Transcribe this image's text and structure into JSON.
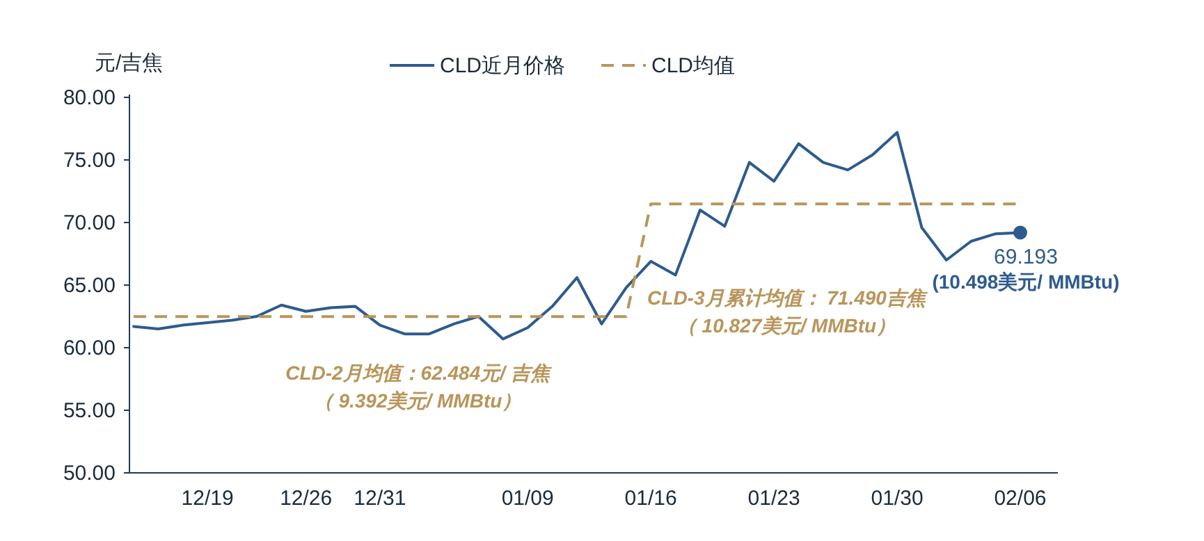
{
  "chart_data": {
    "type": "line",
    "ylabel": "元/吉焦",
    "categories": [
      null,
      null,
      null,
      "12/19",
      null,
      null,
      null,
      "12/26",
      null,
      null,
      "12/31",
      null,
      null,
      null,
      null,
      null,
      "01/09",
      null,
      null,
      null,
      null,
      "01/16",
      null,
      null,
      null,
      null,
      "01/23",
      null,
      null,
      null,
      null,
      "01/30",
      null,
      null,
      null,
      null,
      "02/06"
    ],
    "series": [
      {
        "name": "CLD近月价格",
        "color": "#2e5b8e",
        "line_style": "solid",
        "values": [
          61.7,
          61.5,
          61.8,
          62.0,
          62.2,
          62.5,
          63.4,
          62.9,
          63.2,
          63.3,
          61.8,
          61.1,
          61.1,
          61.9,
          62.5,
          60.7,
          61.6,
          63.3,
          65.6,
          61.9,
          64.8,
          66.9,
          65.8,
          71.0,
          69.7,
          74.8,
          73.3,
          76.3,
          74.8,
          74.2,
          75.4,
          77.2,
          69.6,
          67.0,
          68.5,
          69.1,
          69.193
        ]
      },
      {
        "name": "CLD均值",
        "color": "#b8955a",
        "line_style": "dashed",
        "values": [
          62.484,
          62.484,
          62.484,
          62.484,
          62.484,
          62.484,
          62.484,
          62.484,
          62.484,
          62.484,
          62.484,
          62.484,
          62.484,
          62.484,
          62.484,
          62.484,
          62.484,
          62.484,
          62.484,
          62.484,
          62.484,
          71.49,
          71.49,
          71.49,
          71.49,
          71.49,
          71.49,
          71.49,
          71.49,
          71.49,
          71.49,
          71.49,
          71.49,
          71.49,
          71.49,
          71.49,
          71.49
        ]
      },
      {
        "type": "scatter",
        "color": "#2e5b8e",
        "marker": "circle",
        "x": [
          "02/06"
        ],
        "values": [
          69.193
        ],
        "value_labels": [
          "69.193"
        ]
      }
    ],
    "ylim": [
      50,
      80
    ],
    "yticks": [
      {
        "value": 50,
        "label": "50.00"
      },
      {
        "value": 55,
        "label": "55.00"
      },
      {
        "value": 60,
        "label": "60.00"
      },
      {
        "value": 65,
        "label": "65.00"
      },
      {
        "value": 70,
        "label": "70.00"
      },
      {
        "value": 75,
        "label": "75.00"
      },
      {
        "value": 80,
        "label": "80.00"
      }
    ],
    "grid": false,
    "legend": "top",
    "annotations": [
      "CLD-2月均值：62.484元/ 吉焦",
      "（ 9.392美元/ MMBtu）",
      "CLD-3月累计均值： 71.490吉焦",
      "（ 10.827美元/ MMBtu）",
      {
        "text": "(10.498美元/ MMBtu)",
        "x": "02/06",
        "y": 69.193
      }
    ]
  }
}
